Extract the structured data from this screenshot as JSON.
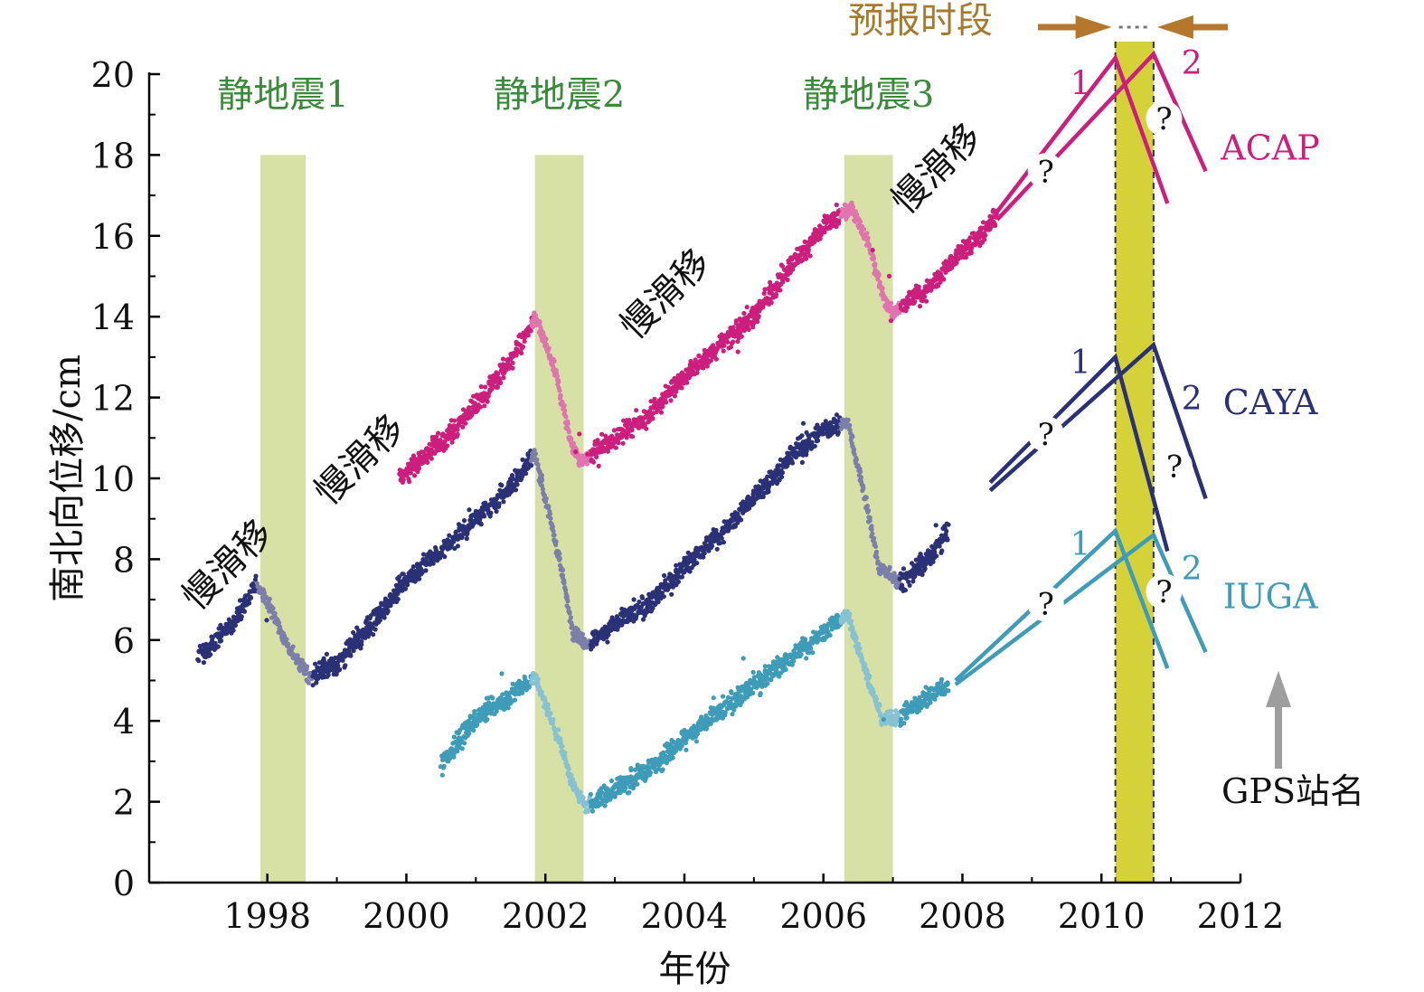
{
  "chart_data": {
    "type": "scatter",
    "xlabel": "年份",
    "ylabel": "南北向位移/cm",
    "xlim": [
      1996.3,
      2012.0
    ],
    "ylim": [
      0,
      20
    ],
    "xticks": [
      1998,
      2000,
      2002,
      2004,
      2006,
      2008,
      2010,
      2012
    ],
    "yticks": [
      0,
      2,
      4,
      6,
      8,
      10,
      12,
      14,
      16,
      18,
      20
    ],
    "grid": false,
    "colors": {
      "ACAP": "#cc1f7d",
      "CAYA": "#2b3176",
      "IUGA": "#3e9cb8",
      "quake_band": "#d7e1a6",
      "forecast_band": "#d4d238",
      "forecast_title": "#a57a2d",
      "quake_label": "#3b8a3b",
      "arrow": "#b4772c",
      "gps_arrow": "#9e9e9e"
    },
    "series": [
      {
        "name": "ACAP",
        "points": [
          [
            1999.9,
            10.0
          ],
          [
            2000.5,
            10.9
          ],
          [
            2001.0,
            11.8
          ],
          [
            2001.5,
            12.9
          ],
          [
            2001.85,
            14.0
          ],
          [
            2002.15,
            12.6
          ],
          [
            2002.35,
            11.0
          ],
          [
            2002.5,
            10.4
          ],
          [
            2003.0,
            11.0
          ],
          [
            2003.5,
            11.6
          ],
          [
            2004.0,
            12.5
          ],
          [
            2004.5,
            13.3
          ],
          [
            2005.0,
            14.0
          ],
          [
            2005.5,
            15.2
          ],
          [
            2006.0,
            16.2
          ],
          [
            2006.4,
            16.7
          ],
          [
            2006.65,
            15.8
          ],
          [
            2006.9,
            14.3
          ],
          [
            2007.0,
            14.1
          ],
          [
            2007.5,
            14.7
          ],
          [
            2008.0,
            15.6
          ],
          [
            2008.5,
            16.5
          ]
        ],
        "slow_slip_segments": [
          [
            1999.9,
            2001.85
          ],
          [
            2002.5,
            2006.4
          ],
          [
            2007.0,
            2008.5
          ]
        ],
        "extrapolations": [
          {
            "label": "1",
            "points": [
              [
                2008.5,
                16.6
              ],
              [
                2010.2,
                20.4
              ],
              [
                2010.95,
                16.8
              ]
            ]
          },
          {
            "label": "2",
            "points": [
              [
                2008.5,
                16.4
              ],
              [
                2010.75,
                20.5
              ],
              [
                2011.5,
                17.6
              ]
            ]
          }
        ]
      },
      {
        "name": "CAYA",
        "points": [
          [
            1997.0,
            5.6
          ],
          [
            1997.5,
            6.4
          ],
          [
            1997.85,
            7.4
          ],
          [
            1998.1,
            6.6
          ],
          [
            1998.3,
            5.8
          ],
          [
            1998.6,
            5.1
          ],
          [
            1999.0,
            5.4
          ],
          [
            1999.5,
            6.4
          ],
          [
            2000.0,
            7.5
          ],
          [
            2000.5,
            8.2
          ],
          [
            2001.0,
            9.0
          ],
          [
            2001.5,
            9.8
          ],
          [
            2001.85,
            10.6
          ],
          [
            2002.2,
            8.0
          ],
          [
            2002.4,
            6.2
          ],
          [
            2002.6,
            5.9
          ],
          [
            2003.0,
            6.4
          ],
          [
            2003.5,
            6.9
          ],
          [
            2004.0,
            7.8
          ],
          [
            2004.5,
            8.6
          ],
          [
            2005.0,
            9.5
          ],
          [
            2005.5,
            10.5
          ],
          [
            2006.0,
            11.2
          ],
          [
            2006.35,
            11.4
          ],
          [
            2006.6,
            9.5
          ],
          [
            2006.8,
            7.8
          ],
          [
            2007.1,
            7.4
          ],
          [
            2007.5,
            8.0
          ],
          [
            2007.8,
            8.7
          ]
        ],
        "slow_slip_segments": [
          [
            1997.0,
            1997.85
          ],
          [
            1998.6,
            2001.85
          ],
          [
            2002.6,
            2006.35
          ],
          [
            2007.1,
            2007.8
          ]
        ],
        "extrapolations": [
          {
            "label": "1",
            "points": [
              [
                2008.4,
                9.9
              ],
              [
                2010.2,
                13.0
              ],
              [
                2010.95,
                8.2
              ]
            ]
          },
          {
            "label": "2",
            "points": [
              [
                2008.4,
                9.7
              ],
              [
                2010.75,
                13.3
              ],
              [
                2011.5,
                9.5
              ]
            ]
          }
        ]
      },
      {
        "name": "IUGA",
        "points": [
          [
            2000.5,
            2.9
          ],
          [
            2001.0,
            4.1
          ],
          [
            2001.5,
            4.6
          ],
          [
            2001.85,
            5.1
          ],
          [
            2002.2,
            3.5
          ],
          [
            2002.4,
            2.4
          ],
          [
            2002.6,
            1.9
          ],
          [
            2003.0,
            2.3
          ],
          [
            2003.5,
            2.8
          ],
          [
            2004.0,
            3.6
          ],
          [
            2004.5,
            4.2
          ],
          [
            2005.0,
            4.9
          ],
          [
            2005.5,
            5.5
          ],
          [
            2006.0,
            6.2
          ],
          [
            2006.35,
            6.6
          ],
          [
            2006.6,
            5.3
          ],
          [
            2006.85,
            4.0
          ],
          [
            2007.1,
            4.1
          ],
          [
            2007.5,
            4.6
          ],
          [
            2007.8,
            4.9
          ]
        ],
        "slow_slip_segments": [
          [
            2000.5,
            2001.85
          ],
          [
            2002.6,
            2006.35
          ],
          [
            2007.1,
            2007.8
          ]
        ],
        "extrapolations": [
          {
            "label": "1",
            "points": [
              [
                2007.9,
                5.0
              ],
              [
                2010.2,
                8.7
              ],
              [
                2010.95,
                5.3
              ]
            ]
          },
          {
            "label": "2",
            "points": [
              [
                2007.9,
                4.9
              ],
              [
                2010.75,
                8.6
              ],
              [
                2011.5,
                5.7
              ]
            ]
          }
        ]
      }
    ],
    "quake_bands": [
      {
        "label": "静地震1",
        "x": [
          1997.9,
          1998.55
        ]
      },
      {
        "label": "静地震2",
        "x": [
          2001.85,
          2002.55
        ]
      },
      {
        "label": "静地震3",
        "x": [
          2006.3,
          2007.0
        ]
      }
    ],
    "forecast_band": {
      "label": "预报时段",
      "x": [
        2010.2,
        2010.75
      ]
    },
    "annotations": {
      "slow_slip": [
        {
          "text": "慢滑移",
          "x": 1997.0,
          "y": 6.7,
          "rotate": -45
        },
        {
          "text": "慢滑移",
          "x": 1998.9,
          "y": 9.3,
          "rotate": -45
        },
        {
          "text": "慢滑移",
          "x": 2003.3,
          "y": 13.4,
          "rotate": -45
        },
        {
          "text": "慢滑移",
          "x": 2007.2,
          "y": 16.5,
          "rotate": -45
        }
      ],
      "question_marks": [
        {
          "text": "?",
          "x": 2009.2,
          "y": 17.6
        },
        {
          "text": "?",
          "x": 2010.9,
          "y": 18.9
        },
        {
          "text": "?",
          "x": 2009.2,
          "y": 11.1
        },
        {
          "text": "?",
          "x": 2011.05,
          "y": 10.3
        },
        {
          "text": "?",
          "x": 2009.2,
          "y": 6.9
        },
        {
          "text": "?",
          "x": 2010.9,
          "y": 7.2
        }
      ],
      "series_labels": [
        {
          "series": "ACAP",
          "text": "ACAP"
        },
        {
          "series": "CAYA",
          "text": "CAYA"
        },
        {
          "series": "IUGA",
          "text": "IUGA"
        }
      ],
      "path_numbers": [
        {
          "series": "ACAP",
          "text": "1",
          "x": 2009.7,
          "y": 19.5
        },
        {
          "series": "ACAP",
          "text": "2",
          "x": 2011.3,
          "y": 20.0
        },
        {
          "series": "CAYA",
          "text": "1",
          "x": 2009.7,
          "y": 12.6
        },
        {
          "series": "CAYA",
          "text": "2",
          "x": 2011.3,
          "y": 11.7
        },
        {
          "series": "IUGA",
          "text": "1",
          "x": 2009.7,
          "y": 8.1
        },
        {
          "series": "IUGA",
          "text": "2",
          "x": 2011.3,
          "y": 7.5
        }
      ],
      "gps_label": "GPS站名"
    }
  }
}
